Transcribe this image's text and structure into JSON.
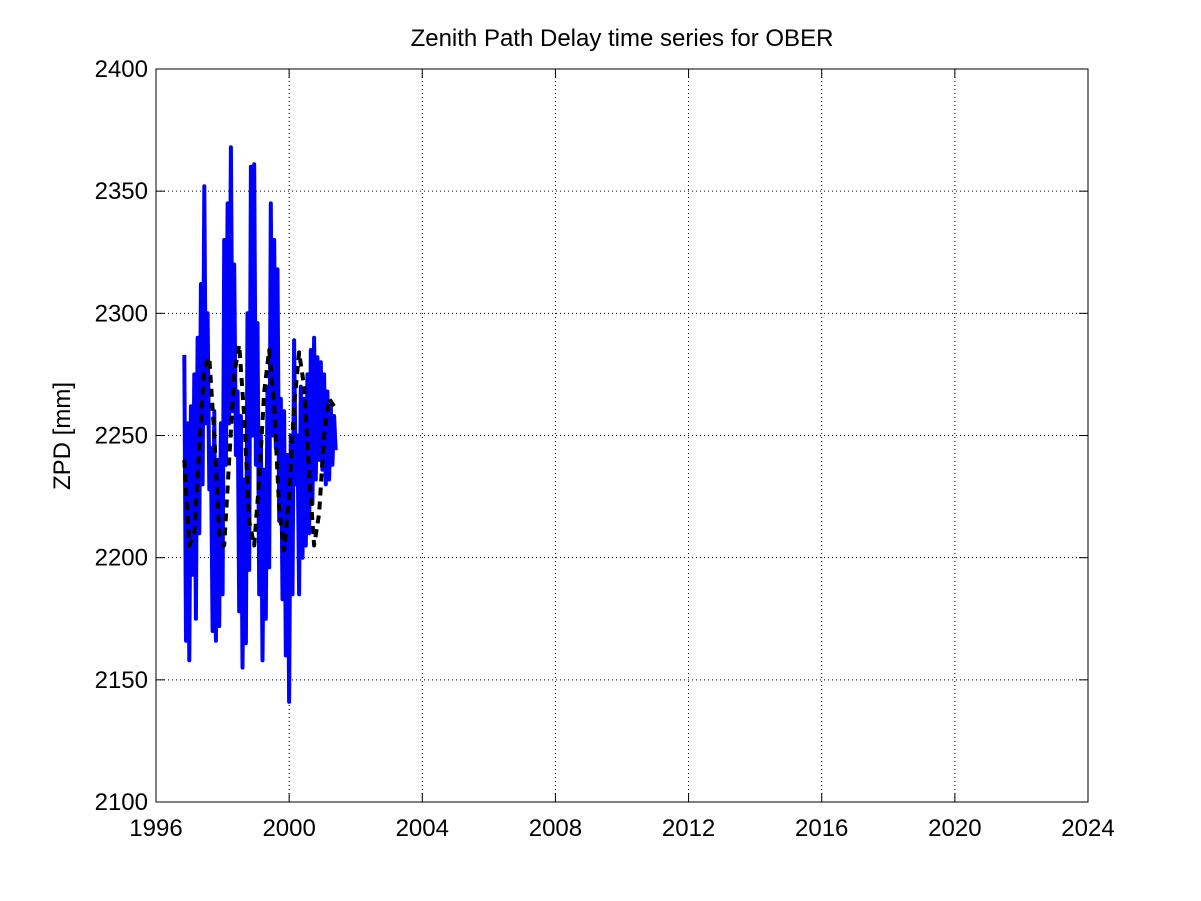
{
  "chart_data": {
    "type": "line",
    "title": "Zenith Path Delay time series for OBER",
    "xlabel": "",
    "ylabel": "ZPD [mm]",
    "xlim": [
      1996,
      2024
    ],
    "ylim": [
      2100,
      2400
    ],
    "xticks": [
      "1996",
      "2000",
      "2004",
      "2008",
      "2012",
      "2016",
      "2020",
      "2024"
    ],
    "yticks": [
      "2100",
      "2150",
      "2200",
      "2250",
      "2300",
      "2350",
      "2400"
    ],
    "grid": true,
    "series": [
      {
        "style": "solid",
        "color": "#0000ff",
        "x": [
          1996.85,
          1996.9,
          1996.95,
          1997.0,
          1997.05,
          1997.1,
          1997.15,
          1997.2,
          1997.25,
          1997.3,
          1997.35,
          1997.4,
          1997.45,
          1997.5,
          1997.55,
          1997.6,
          1997.65,
          1997.7,
          1997.75,
          1997.8,
          1997.85,
          1997.9,
          1997.95,
          1998.0,
          1998.05,
          1998.1,
          1998.15,
          1998.2,
          1998.25,
          1998.3,
          1998.35,
          1998.4,
          1998.45,
          1998.5,
          1998.55,
          1998.6,
          1998.65,
          1998.7,
          1998.75,
          1998.8,
          1998.85,
          1998.9,
          1998.95,
          1999.0,
          1999.05,
          1999.1,
          1999.15,
          1999.2,
          1999.25,
          1999.3,
          1999.35,
          1999.4,
          1999.45,
          1999.5,
          1999.55,
          1999.6,
          1999.65,
          1999.7,
          1999.75,
          1999.8,
          1999.85,
          1999.9,
          1999.95,
          2000.0,
          2000.05,
          2000.1,
          2000.15,
          2000.2,
          2000.25,
          2000.3,
          2000.35,
          2000.4,
          2000.45,
          2000.5,
          2000.55,
          2000.6,
          2000.65,
          2000.7,
          2000.75,
          2000.8,
          2000.85,
          2000.9,
          2000.95,
          2001.0,
          2001.05,
          2001.1,
          2001.15,
          2001.2,
          2001.25,
          2001.3,
          2001.35,
          2001.4
        ],
        "y": [
          2283,
          2166,
          2255,
          2158,
          2262,
          2193,
          2275,
          2175,
          2290,
          2210,
          2312,
          2230,
          2352,
          2255,
          2300,
          2228,
          2245,
          2170,
          2260,
          2166,
          2240,
          2172,
          2255,
          2185,
          2330,
          2238,
          2345,
          2255,
          2368,
          2260,
          2320,
          2242,
          2268,
          2178,
          2258,
          2155,
          2232,
          2165,
          2300,
          2195,
          2360,
          2250,
          2361,
          2238,
          2296,
          2185,
          2250,
          2158,
          2236,
          2175,
          2270,
          2196,
          2345,
          2250,
          2330,
          2245,
          2318,
          2215,
          2265,
          2183,
          2260,
          2160,
          2242,
          2141,
          2250,
          2185,
          2289,
          2230,
          2250,
          2185,
          2270,
          2200,
          2265,
          2205,
          2275,
          2210,
          2285,
          2222,
          2290,
          2232,
          2282,
          2240,
          2280,
          2236,
          2275,
          2230,
          2268,
          2232,
          2262,
          2238,
          2258,
          2244
        ]
      },
      {
        "style": "dashed",
        "color": "#000000",
        "x": [
          1996.85,
          1997.0,
          1997.15,
          1997.3,
          1997.45,
          1997.6,
          1997.75,
          1997.9,
          1998.05,
          1998.2,
          1998.35,
          1998.5,
          1998.65,
          1998.8,
          1998.95,
          1999.1,
          1999.25,
          1999.4,
          1999.55,
          1999.7,
          1999.85,
          2000.0,
          2000.15,
          2000.3,
          2000.45,
          2000.6,
          2000.75,
          2000.9,
          2001.05,
          2001.2,
          2001.35
        ],
        "y": [
          2240,
          2205,
          2210,
          2245,
          2278,
          2282,
          2250,
          2210,
          2205,
          2240,
          2275,
          2287,
          2258,
          2215,
          2205,
          2232,
          2268,
          2285,
          2262,
          2220,
          2203,
          2225,
          2262,
          2284,
          2270,
          2235,
          2205,
          2218,
          2250,
          2265,
          2262
        ]
      }
    ]
  }
}
